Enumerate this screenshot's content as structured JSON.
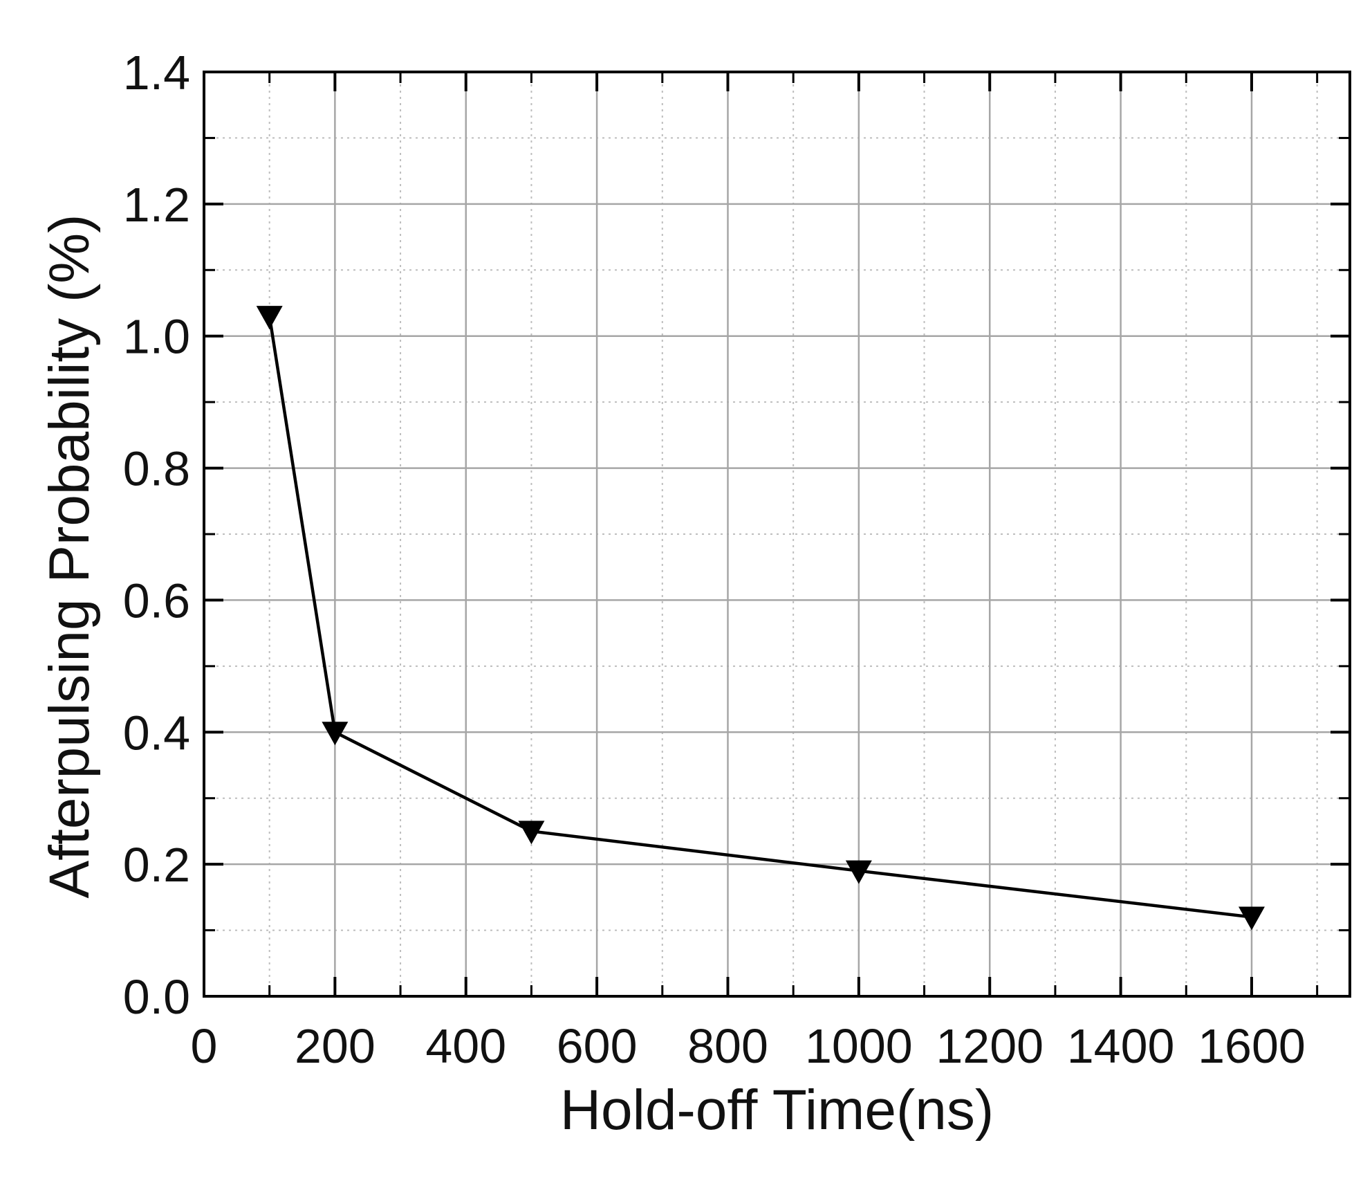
{
  "chart_data": {
    "type": "line",
    "title": "",
    "xlabel": "Hold-off Time(ns)",
    "ylabel": "Afterpulsing Probability (%)",
    "xlim": [
      0,
      1750
    ],
    "ylim": [
      0,
      1.4
    ],
    "x_major_ticks": [
      0,
      200,
      400,
      600,
      800,
      1000,
      1200,
      1400,
      1600
    ],
    "x_tick_labels": [
      "0",
      "200",
      "400",
      "600",
      "800",
      "1000",
      "1200",
      "1400",
      "1600"
    ],
    "y_major_ticks": [
      0,
      0.2,
      0.4,
      0.6,
      0.8,
      1.0,
      1.2,
      1.4
    ],
    "y_tick_labels": [
      "0.0",
      "0.2",
      "0.4",
      "0.6",
      "0.8",
      "1.0",
      "1.2",
      "1.4"
    ],
    "x_minor_step": 100,
    "y_minor_step": 0.1,
    "grid": true,
    "legend": "none",
    "marker": "down-triangle",
    "series": [
      {
        "x": [
          100,
          200,
          500,
          1000,
          1600
        ],
        "y": [
          1.03,
          0.4,
          0.25,
          0.19,
          0.12
        ]
      }
    ],
    "colors": {
      "line": "#000000",
      "marker": "#000000",
      "major_grid": "#a6a6a6",
      "minor_grid": "#bdbdbd",
      "frame": "#000000"
    }
  }
}
